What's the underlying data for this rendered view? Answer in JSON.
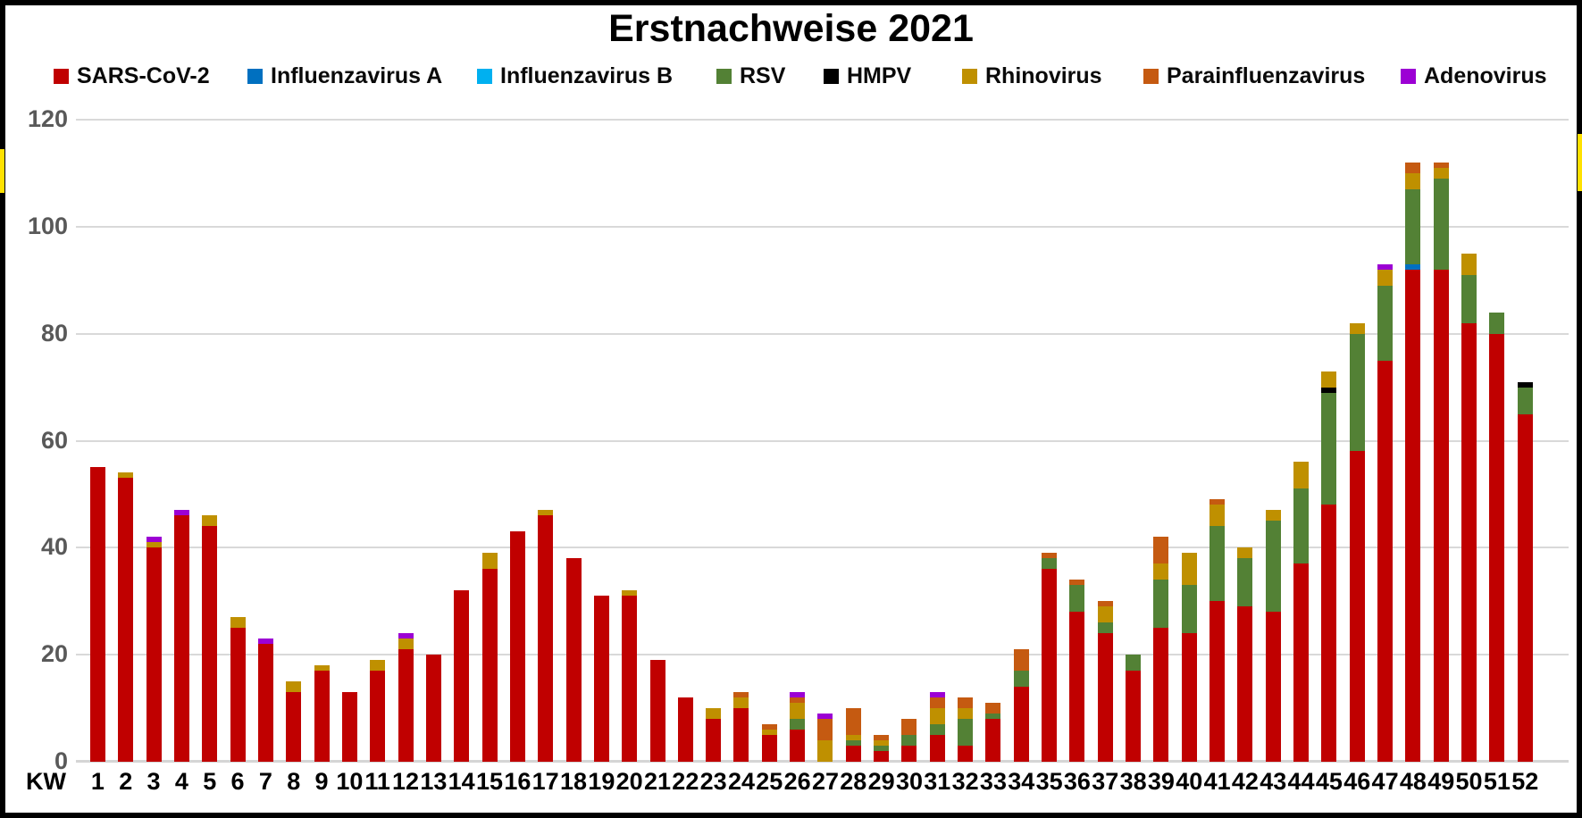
{
  "title": "Erstnachweise 2021",
  "axis": {
    "kw_label": "KW",
    "y_ticks": [
      0,
      20,
      40,
      60,
      80,
      100,
      120
    ],
    "gridline_color": "#D9D9D9",
    "y_label_color": "#595959",
    "x_label_color": "#000000"
  },
  "decoration": {
    "frame_color": "#000000",
    "edge_marker_color": "#FFE100"
  },
  "legend": [
    {
      "label": "SARS-CoV-2",
      "color": "#C00000"
    },
    {
      "label": "Influenzavirus A",
      "color": "#0070C0"
    },
    {
      "label": "Influenzavirus B",
      "color": "#00B0F0"
    },
    {
      "label": "RSV",
      "color": "#538135"
    },
    {
      "label": "HMPV",
      "color": "#000000"
    },
    {
      "label": "Rhinovirus",
      "color": "#BF9000"
    },
    {
      "label": "Parainfluenzavirus",
      "color": "#C55A11"
    },
    {
      "label": "Adenovirus",
      "color": "#9C00D4"
    }
  ],
  "chart_data": {
    "type": "bar",
    "stacked": true,
    "title": "Erstnachweise 2021",
    "xlabel": "KW",
    "ylabel": "",
    "ylim": [
      0,
      120
    ],
    "y_tick_step": 20,
    "grid": true,
    "legend_position": "top",
    "categories": [
      1,
      2,
      3,
      4,
      5,
      6,
      7,
      8,
      9,
      10,
      11,
      12,
      13,
      14,
      15,
      16,
      17,
      18,
      19,
      20,
      21,
      22,
      23,
      24,
      25,
      26,
      27,
      28,
      29,
      30,
      31,
      32,
      33,
      34,
      35,
      36,
      37,
      38,
      39,
      40,
      41,
      42,
      43,
      44,
      45,
      46,
      47,
      48,
      49,
      50,
      51,
      52
    ],
    "series": [
      {
        "name": "SARS-CoV-2",
        "color": "#C00000",
        "values": [
          55,
          53,
          40,
          46,
          44,
          25,
          22,
          13,
          17,
          13,
          17,
          21,
          20,
          32,
          36,
          43,
          46,
          38,
          31,
          31,
          19,
          12,
          8,
          10,
          5,
          6,
          0,
          3,
          2,
          3,
          5,
          3,
          8,
          14,
          36,
          28,
          24,
          17,
          25,
          24,
          30,
          29,
          28,
          37,
          48,
          58,
          75,
          92,
          92,
          82,
          80,
          65
        ]
      },
      {
        "name": "Influenzavirus A",
        "color": "#0070C0",
        "values": [
          0,
          0,
          0,
          0,
          0,
          0,
          0,
          0,
          0,
          0,
          0,
          0,
          0,
          0,
          0,
          0,
          0,
          0,
          0,
          0,
          0,
          0,
          0,
          0,
          0,
          0,
          0,
          0,
          0,
          0,
          0,
          0,
          0,
          0,
          0,
          0,
          0,
          0,
          0,
          0,
          0,
          0,
          0,
          0,
          0,
          0,
          0,
          1,
          0,
          0,
          0,
          0
        ]
      },
      {
        "name": "Influenzavirus B",
        "color": "#00B0F0",
        "values": [
          0,
          0,
          0,
          0,
          0,
          0,
          0,
          0,
          0,
          0,
          0,
          0,
          0,
          0,
          0,
          0,
          0,
          0,
          0,
          0,
          0,
          0,
          0,
          0,
          0,
          0,
          0,
          0,
          0,
          0,
          0,
          0,
          0,
          0,
          0,
          0,
          0,
          0,
          0,
          0,
          0,
          0,
          0,
          0,
          0,
          0,
          0,
          0,
          0,
          0,
          0,
          0
        ]
      },
      {
        "name": "RSV",
        "color": "#538135",
        "values": [
          0,
          0,
          0,
          0,
          0,
          0,
          0,
          0,
          0,
          0,
          0,
          0,
          0,
          0,
          0,
          0,
          0,
          0,
          0,
          0,
          0,
          0,
          0,
          0,
          0,
          2,
          0,
          1,
          1,
          2,
          2,
          5,
          1,
          3,
          2,
          5,
          2,
          3,
          9,
          9,
          14,
          9,
          17,
          14,
          21,
          22,
          14,
          14,
          17,
          9,
          4,
          5
        ]
      },
      {
        "name": "HMPV",
        "color": "#000000",
        "values": [
          0,
          0,
          0,
          0,
          0,
          0,
          0,
          0,
          0,
          0,
          0,
          0,
          0,
          0,
          0,
          0,
          0,
          0,
          0,
          0,
          0,
          0,
          0,
          0,
          0,
          0,
          0,
          0,
          0,
          0,
          0,
          0,
          0,
          0,
          0,
          0,
          0,
          0,
          0,
          0,
          0,
          0,
          0,
          0,
          1,
          0,
          0,
          0,
          0,
          0,
          0,
          1
        ]
      },
      {
        "name": "Rhinovirus",
        "color": "#BF9000",
        "values": [
          0,
          1,
          1,
          0,
          2,
          2,
          0,
          2,
          1,
          0,
          2,
          2,
          0,
          0,
          3,
          0,
          1,
          0,
          0,
          1,
          0,
          0,
          2,
          2,
          1,
          3,
          4,
          1,
          1,
          0,
          3,
          2,
          0,
          0,
          0,
          0,
          3,
          0,
          3,
          6,
          4,
          2,
          2,
          5,
          3,
          2,
          3,
          3,
          2,
          4,
          0,
          0
        ]
      },
      {
        "name": "Parainfluenzavirus",
        "color": "#C55A11",
        "values": [
          0,
          0,
          0,
          0,
          0,
          0,
          0,
          0,
          0,
          0,
          0,
          0,
          0,
          0,
          0,
          0,
          0,
          0,
          0,
          0,
          0,
          0,
          0,
          1,
          1,
          1,
          4,
          5,
          1,
          3,
          2,
          2,
          2,
          4,
          1,
          1,
          1,
          0,
          5,
          0,
          1,
          0,
          0,
          0,
          0,
          0,
          0,
          2,
          1,
          0,
          0,
          0
        ]
      },
      {
        "name": "Adenovirus",
        "color": "#9C00D4",
        "values": [
          0,
          0,
          1,
          1,
          0,
          0,
          1,
          0,
          0,
          0,
          0,
          1,
          0,
          0,
          0,
          0,
          0,
          0,
          0,
          0,
          0,
          0,
          0,
          0,
          0,
          1,
          1,
          0,
          0,
          0,
          1,
          0,
          0,
          0,
          0,
          0,
          0,
          0,
          0,
          0,
          0,
          0,
          0,
          0,
          0,
          0,
          1,
          0,
          0,
          0,
          0,
          0
        ]
      }
    ]
  }
}
